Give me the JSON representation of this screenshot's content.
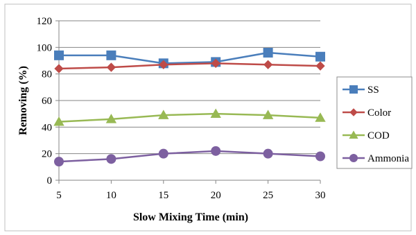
{
  "chart_data": {
    "type": "line",
    "title": "",
    "xlabel": "Slow Mixing Time (min)",
    "ylabel": "Removing (%)",
    "x": [
      5,
      10,
      15,
      20,
      25,
      30
    ],
    "xlim": [
      5,
      30
    ],
    "ylim": [
      0,
      120
    ],
    "yticks": [
      0,
      20,
      40,
      60,
      80,
      100,
      120
    ],
    "grid": "horizontal",
    "legend": "right",
    "series": [
      {
        "name": "SS",
        "values": [
          94,
          94,
          88,
          89,
          96,
          93
        ],
        "color": "#4a7ebb",
        "marker": "square"
      },
      {
        "name": "Color",
        "values": [
          84,
          85,
          87,
          88,
          87,
          86
        ],
        "color": "#be4b48",
        "marker": "diamond"
      },
      {
        "name": "COD",
        "values": [
          44,
          46,
          49,
          50,
          49,
          47
        ],
        "color": "#98b954",
        "marker": "triangle"
      },
      {
        "name": "Ammonia",
        "values": [
          14,
          16,
          20,
          22,
          20,
          18
        ],
        "color": "#7d60a0",
        "marker": "circle"
      }
    ]
  }
}
